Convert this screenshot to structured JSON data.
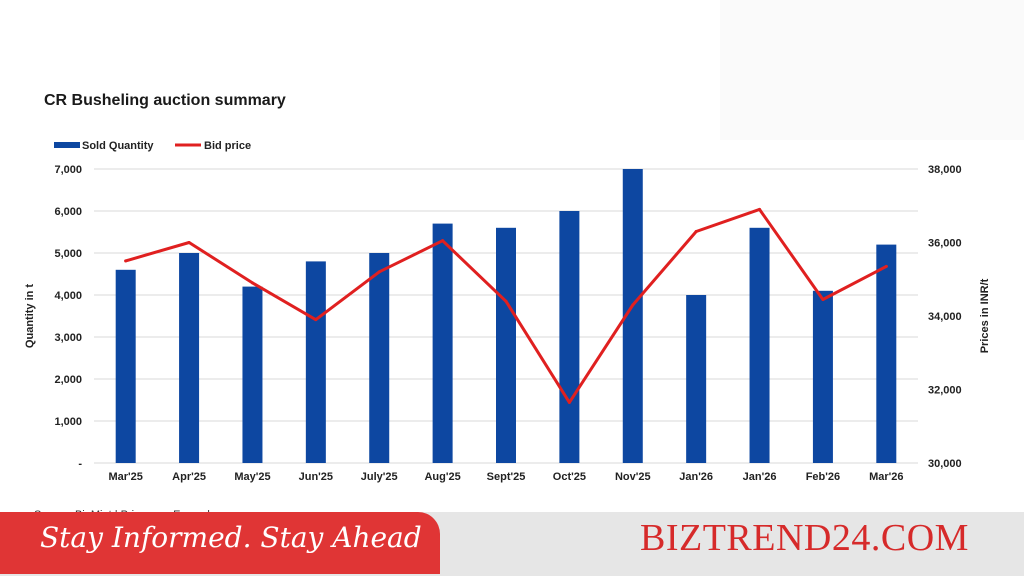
{
  "header": {
    "title": "CR Busheling auction summary"
  },
  "chart_data": {
    "type": "bar",
    "title": "CR Busheling auction summary",
    "categories": [
      "Mar'25",
      "Apr'25",
      "May'25",
      "Jun'25",
      "July'25",
      "Aug'25",
      "Sept'25",
      "Oct'25",
      "Nov'25",
      "Jan'26",
      "Jan'26",
      "Feb'26",
      "Mar'26"
    ],
    "series": [
      {
        "name": "Sold Quantity",
        "type": "bar",
        "axis": "left",
        "values": [
          4600,
          5000,
          4200,
          4800,
          5000,
          5700,
          5600,
          6000,
          7000,
          4000,
          5600,
          4100,
          5200
        ]
      },
      {
        "name": "Bid price",
        "type": "line",
        "axis": "right",
        "values": [
          35500,
          36000,
          34900,
          33900,
          35200,
          36050,
          34400,
          31650,
          34300,
          36300,
          36900,
          34450,
          35350
        ]
      }
    ],
    "ylabel": "Quantity in t",
    "ylabel_right": "Prices in INR/t",
    "ylim": [
      0,
      7000
    ],
    "ylim_right": [
      30000,
      38000
    ],
    "yticks": [
      "-",
      "1,000",
      "2,000",
      "3,000",
      "4,000",
      "5,000",
      "6,000",
      "7,000"
    ],
    "yticks_right": [
      "30,000",
      "32,000",
      "34,000",
      "36,000",
      "38,000"
    ],
    "grid": true,
    "legend_position": "top-left",
    "colors": {
      "bar": "#0d47a1",
      "line": "#e02020",
      "grid": "#d9d9d9"
    }
  },
  "footer": {
    "source_partial": "Source: BigMint | Prices are Ex-works",
    "slogan": "Stay Informed. Stay Ahead",
    "brand": "BIZTREND24.COM"
  }
}
